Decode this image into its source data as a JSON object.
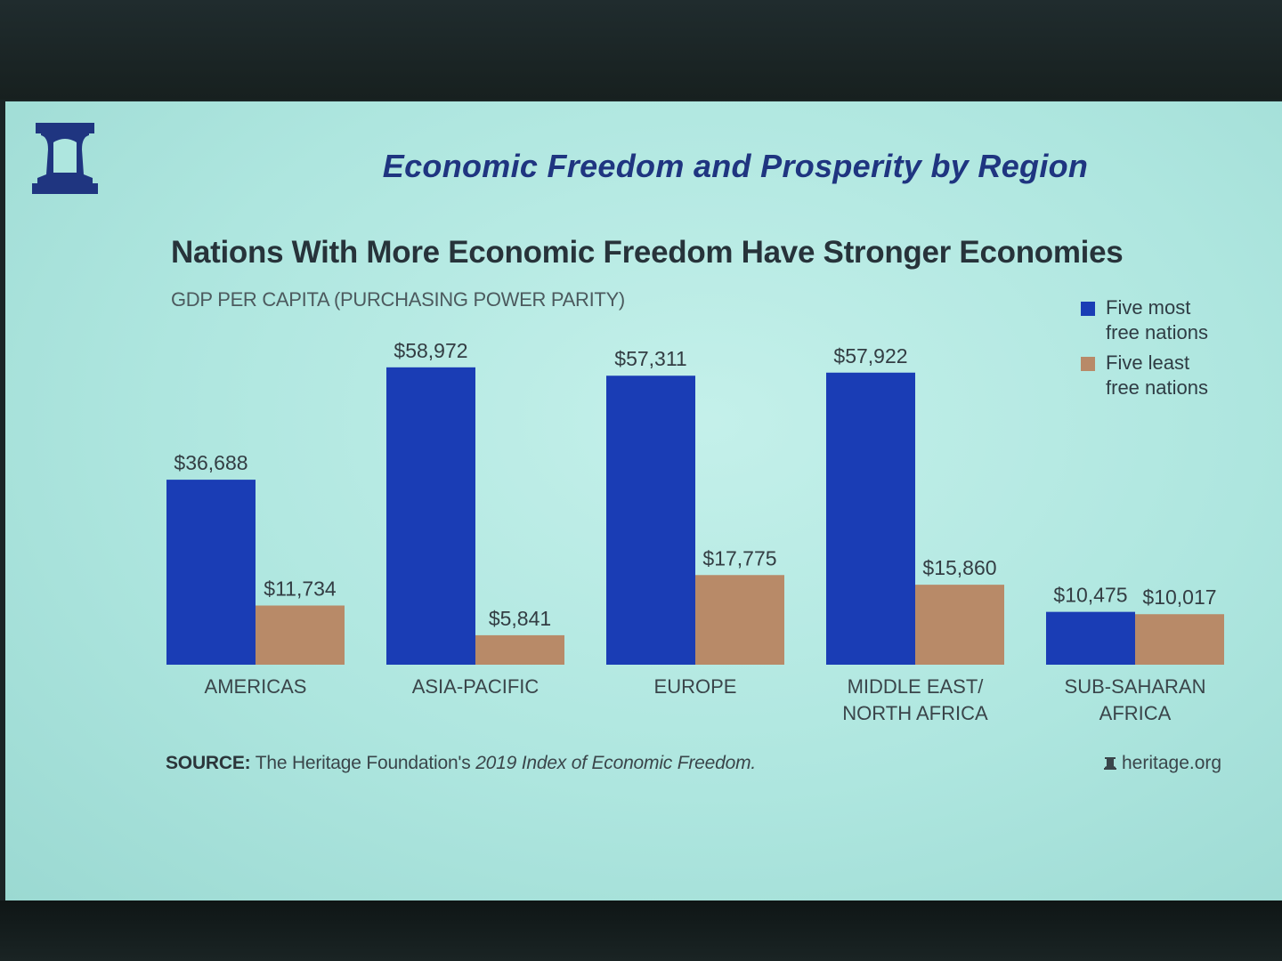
{
  "slide_title": "Economic Freedom and Prosperity by Region",
  "source": {
    "label": "SOURCE:",
    "text_before": "The Heritage Foundation's",
    "text_italic": "2019 Index of Economic Freedom.",
    "url": "heritage.org"
  },
  "colors": {
    "most_free": "#1a3db5",
    "least_free": "#b88a68",
    "title": "#1f3580"
  },
  "chart_data": {
    "type": "bar",
    "subtitle": "Nations With More Economic Freedom Have Stronger Economies",
    "ylabel": "GDP PER CAPITA (PURCHASING POWER PARITY)",
    "categories": [
      [
        "AMERICAS"
      ],
      [
        "ASIA-PACIFIC"
      ],
      [
        "EUROPE"
      ],
      [
        "MIDDLE EAST/",
        "NORTH AFRICA"
      ],
      [
        "SUB-SAHARAN",
        "AFRICA"
      ]
    ],
    "series": [
      {
        "name": "Five most free nations",
        "legend_lines": [
          "Five most",
          "free nations"
        ],
        "values": [
          36688,
          58972,
          57311,
          57922,
          10475
        ],
        "labels": [
          "$36,688",
          "$58,972",
          "$57,311",
          "$57,922",
          "$10,475"
        ]
      },
      {
        "name": "Five least free nations",
        "legend_lines": [
          "Five least",
          "free nations"
        ],
        "values": [
          11734,
          5841,
          17775,
          15860,
          10017
        ],
        "labels": [
          "$11,734",
          "$5,841",
          "$17,775",
          "$15,860",
          "$10,017"
        ]
      }
    ],
    "ylim": [
      0,
      60000
    ],
    "grid": false,
    "legend_position": "top-right"
  }
}
